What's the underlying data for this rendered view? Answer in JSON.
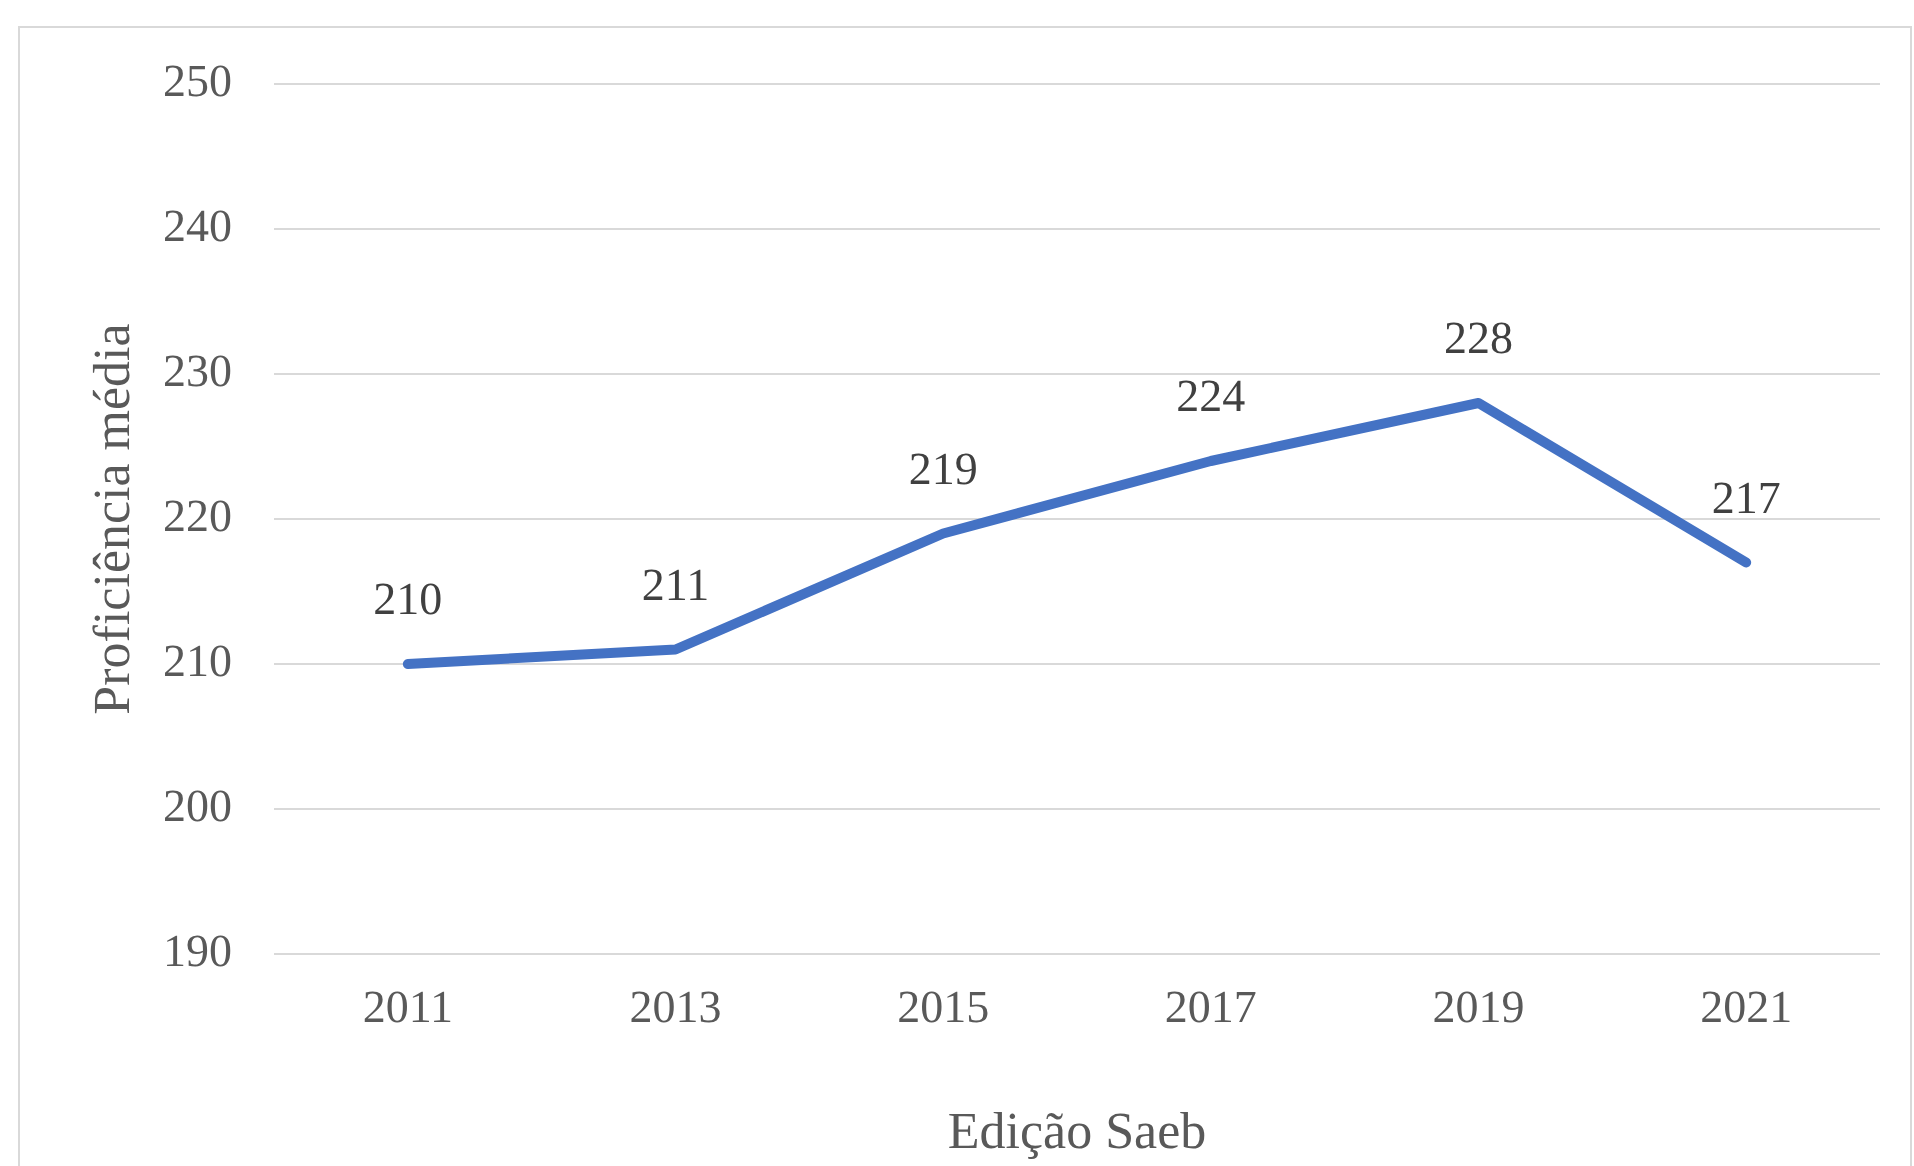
{
  "chart_data": {
    "type": "line",
    "xlabel": "Edição Saeb",
    "ylabel": "Proficiência média",
    "categories": [
      "2011",
      "2013",
      "2015",
      "2017",
      "2019",
      "2021"
    ],
    "values": [
      210,
      211,
      219,
      224,
      228,
      217
    ],
    "color": "#4472c4",
    "ylim": [
      190,
      250
    ],
    "yticks": [
      190,
      200,
      210,
      220,
      230,
      240,
      250
    ],
    "grid": "y",
    "data_labels": true
  }
}
